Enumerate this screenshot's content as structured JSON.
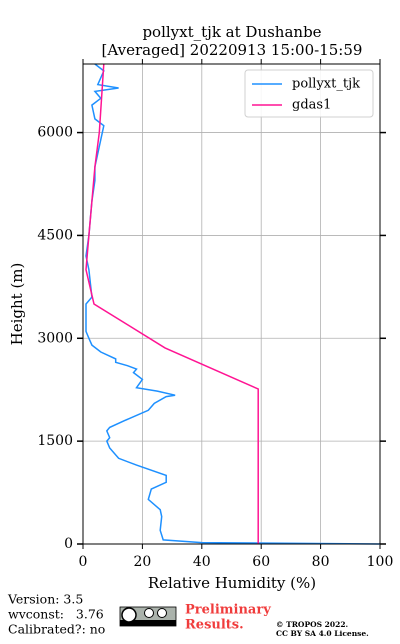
{
  "chart_data": {
    "type": "line",
    "title": "pollyxt_tjk at Dushanbe",
    "subtitle": "[Averaged] 20220913 15:00-15:59",
    "xlabel": "Relative Humidity (%)",
    "ylabel": "Height (m)",
    "xlim": [
      0,
      100
    ],
    "ylim": [
      0,
      7000
    ],
    "xticks": [
      0,
      20,
      40,
      60,
      80,
      100
    ],
    "yticks": [
      0,
      1500,
      3000,
      4500,
      6000
    ],
    "grid": true,
    "legend": "upper right",
    "series": [
      {
        "name": "pollyxt_tjk",
        "color": "#1e90ff",
        "x": [
          100,
          40,
          27,
          26,
          26.5,
          26,
          22,
          23,
          28,
          28,
          18,
          12,
          9,
          8,
          9,
          8,
          9,
          14,
          22,
          24,
          28,
          31,
          25,
          18,
          20,
          17,
          18,
          15,
          11,
          11,
          6,
          3,
          2,
          1,
          1,
          3,
          2,
          1,
          2,
          3,
          4,
          4,
          7,
          4,
          3,
          6,
          4,
          12,
          5,
          7,
          4
        ],
        "y": [
          0,
          20,
          60,
          200,
          400,
          500,
          650,
          800,
          900,
          1000,
          1150,
          1250,
          1400,
          1500,
          1550,
          1650,
          1700,
          1800,
          1950,
          2050,
          2150,
          2170,
          2230,
          2280,
          2400,
          2500,
          2550,
          2600,
          2650,
          2700,
          2800,
          2900,
          3000,
          3100,
          3500,
          3600,
          4000,
          4200,
          4500,
          5000,
          5300,
          5500,
          6100,
          6200,
          6400,
          6500,
          6600,
          6650,
          6700,
          6900,
          7000
        ]
      },
      {
        "name": "gdas1",
        "color": "#ff1493",
        "x": [
          59,
          59,
          27.6,
          3.7,
          1,
          2,
          4,
          5.5,
          7
        ],
        "y": [
          0,
          2260,
          2860,
          3500,
          4000,
          4500,
          5500,
          6000,
          7000
        ]
      }
    ]
  },
  "footer": {
    "version": "Version: 3.5",
    "wvconst": "wvconst:   3.76",
    "calibrated": "Calibrated?: no",
    "preliminary": [
      "Preliminary",
      "Results."
    ],
    "license": [
      "© TROPOS 2022.",
      "CC BY SA 4.0 License."
    ]
  }
}
